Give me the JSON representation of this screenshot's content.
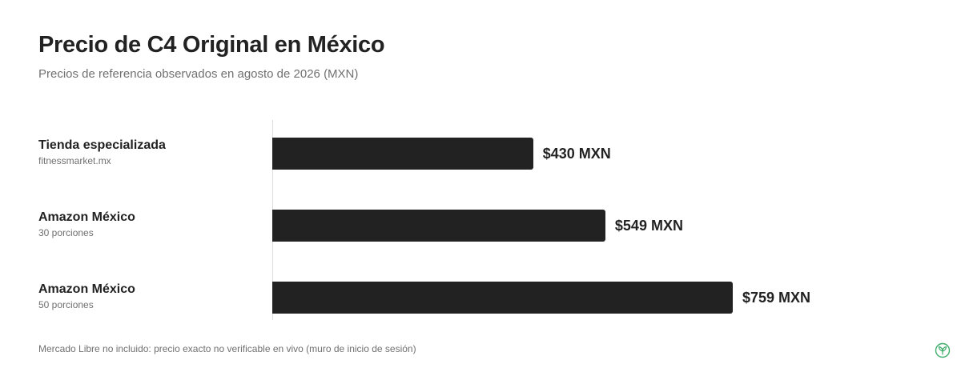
{
  "header": {
    "title": "Precio de C4 Original en México",
    "subtitle": "Precios de referencia observados en agosto de 2026 (MXN)"
  },
  "footnote": "Mercado Libre no incluido: precio exacto no verificable en vivo (muro de inicio de sesión)",
  "colors": {
    "bar": "#222222",
    "axis": "#dddddd",
    "muted_text": "#707070",
    "badge": "#3fae6a"
  },
  "badge_icon": "leaf-logo-icon",
  "chart_data": {
    "type": "bar",
    "orientation": "horizontal",
    "categories": [
      "Tienda especializada",
      "Amazon México",
      "Amazon México"
    ],
    "category_details": [
      "fitnessmarket.mx",
      "30 porciones",
      "50 porciones"
    ],
    "values": [
      430,
      549,
      759
    ],
    "value_labels": [
      "$430 MXN",
      "$549 MXN",
      "$759 MXN"
    ],
    "unit": "MXN",
    "xlim": [
      0,
      1000
    ],
    "grid": false,
    "legend": "none"
  }
}
